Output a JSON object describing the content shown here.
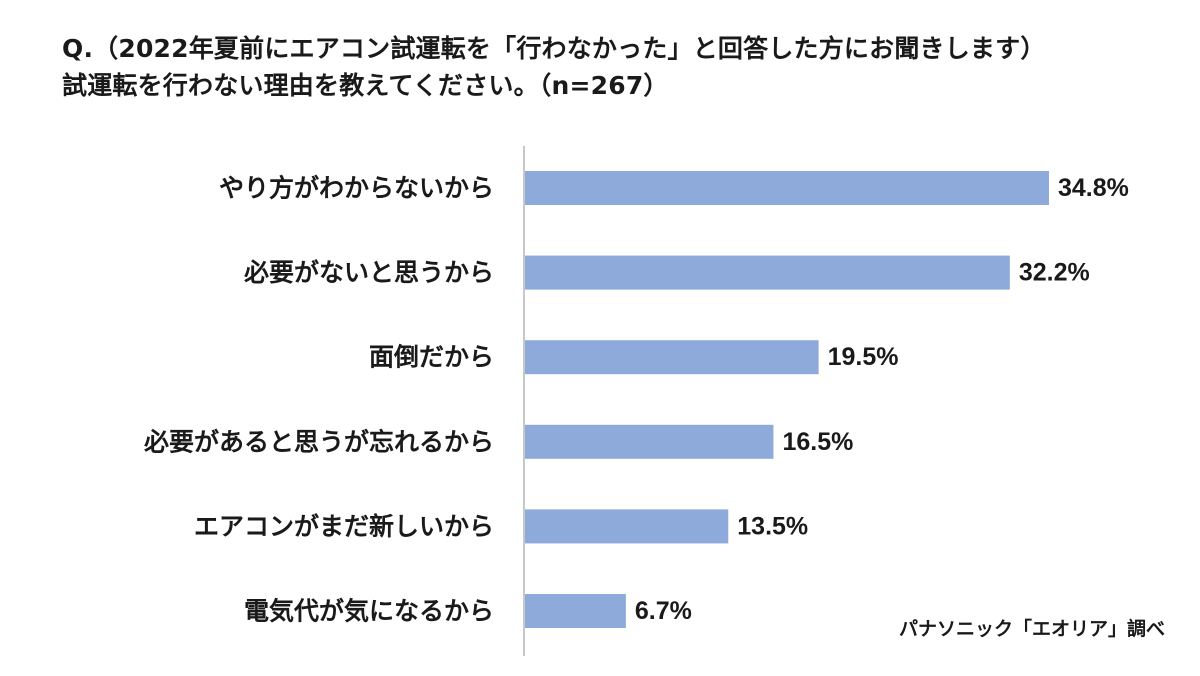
{
  "header": {
    "title_line1": "Q.（2022年夏前にエアコン試運転を「行わなかった」と回答した方にお聞きします）",
    "title_line2": "試運転を行わない理由を教えてください。（n=267）"
  },
  "footer": {
    "source": "パナソニック「エオリア」調べ"
  },
  "chart_data": {
    "type": "bar",
    "orientation": "horizontal",
    "categories": [
      "やり方がわからないから",
      "必要がないと思うから",
      "面倒だから",
      "必要があると思うが忘れるから",
      "エアコンがまだ新しいから",
      "電気代が気になるから"
    ],
    "values": [
      34.8,
      32.2,
      19.5,
      16.5,
      13.5,
      6.7
    ],
    "value_labels": [
      "34.8%",
      "32.2%",
      "19.5%",
      "16.5%",
      "13.5%",
      "6.7%"
    ],
    "title": "Q.（2022年夏前にエアコン試運転を「行わなかった」と回答した方にお聞きします）試運転を行わない理由を教えてください。（n=267）",
    "xlabel": "",
    "ylabel": "",
    "xlim": [
      0,
      35
    ],
    "grid": false,
    "legend": "none",
    "bar_color": "#8eaadb"
  }
}
